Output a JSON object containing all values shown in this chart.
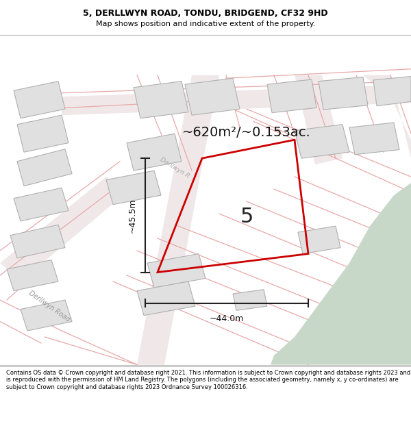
{
  "title": "5, DERLLWYN ROAD, TONDU, BRIDGEND, CF32 9HD",
  "subtitle": "Map shows position and indicative extent of the property.",
  "footer": "Contains OS data © Crown copyright and database right 2021. This information is subject to Crown copyright and database rights 2023 and is reproduced with the permission of HM Land Registry. The polygons (including the associated geometry, namely x, y co-ordinates) are subject to Crown copyright and database rights 2023 Ordnance Survey 100026316.",
  "area_label": "~620m²/~0.153ac.",
  "width_label": "~44.0m",
  "height_label": "~45.5m",
  "plot_number": "5",
  "map_bg": "#ffffff",
  "green_area_color": "#c8d8c8",
  "road_line_color": "#e8a8a8",
  "road_fill_color": "#f0e8e8",
  "building_color": "#e0e0e0",
  "building_edge_color": "#b0b0b0",
  "property_outline_color": "#cc0000",
  "road_label": "Derllwyn Road",
  "road_label2": "Derllwyn R...",
  "dim_line_color": "#222222",
  "title_fontsize": 9,
  "subtitle_fontsize": 8,
  "footer_fontsize": 6.0,
  "area_fontsize": 14,
  "dim_fontsize": 9,
  "plot_num_fontsize": 22
}
